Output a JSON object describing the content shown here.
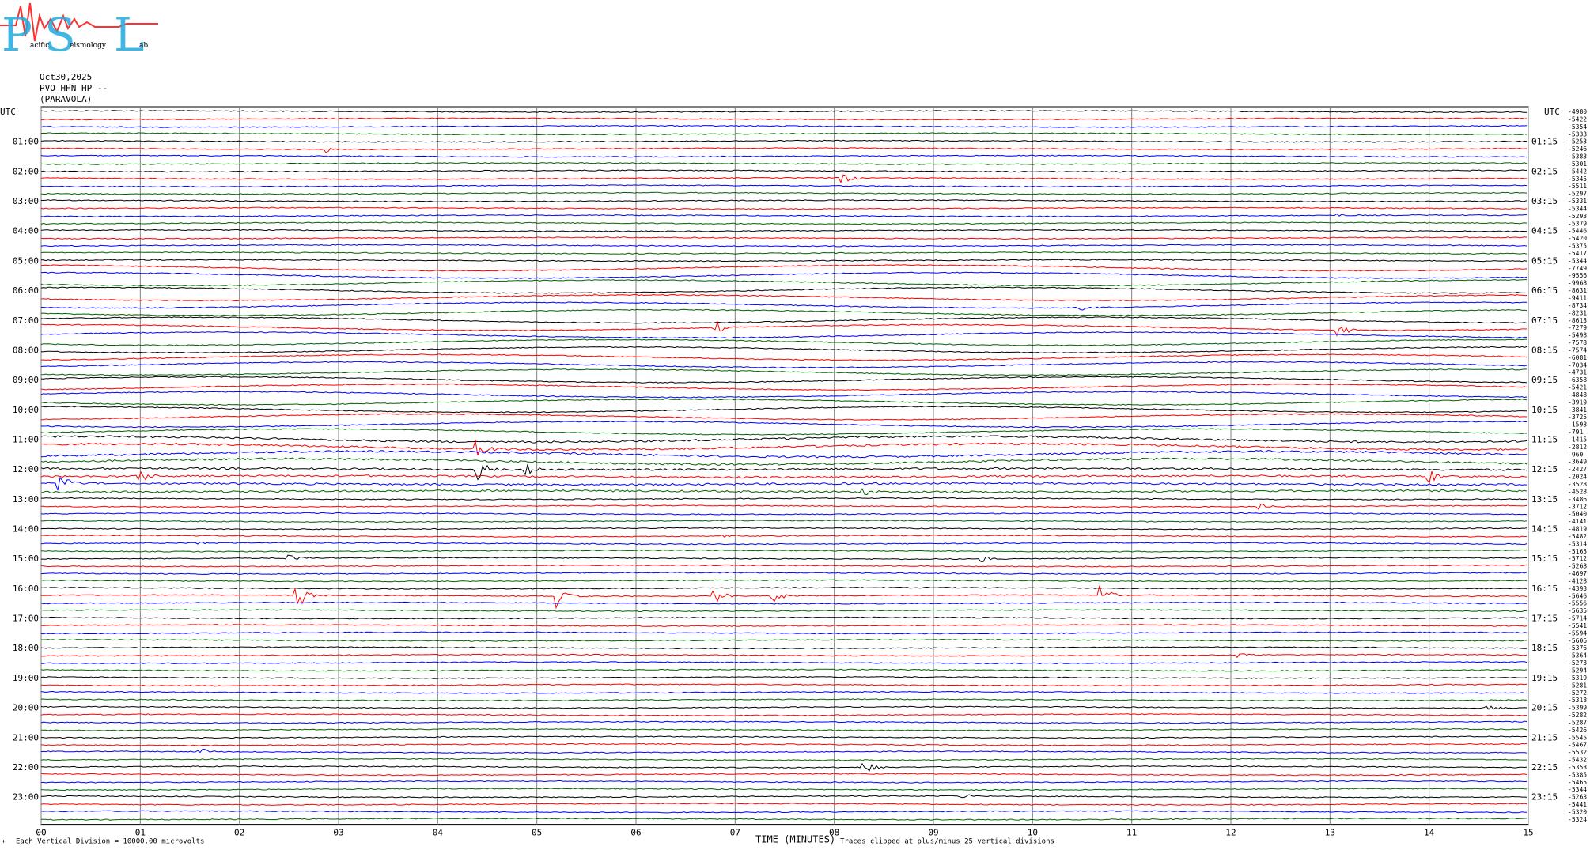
{
  "logo": {
    "letters": [
      "P",
      "S",
      "L"
    ],
    "words": [
      "acific",
      "eismology",
      "ab"
    ]
  },
  "header": {
    "date": "Oct30,2025",
    "station": "PVO HHN HP --",
    "location": "(PARAVOLA)"
  },
  "colors": {
    "trace_cycle": [
      "#000000",
      "#ff0000",
      "#0000ff",
      "#006400"
    ],
    "grid": "#808080"
  },
  "chart_data": {
    "type": "line",
    "title": "",
    "xlabel": "TIME (MINUTES)",
    "xlim": [
      0,
      15
    ],
    "x_ticks": [
      "00",
      "01",
      "02",
      "03",
      "04",
      "05",
      "06",
      "07",
      "08",
      "09",
      "10",
      "11",
      "12",
      "13",
      "14",
      "15"
    ],
    "left_axis_title": "UTC",
    "right_axis_title": "UTC",
    "left_hour_labels": [
      "01:00",
      "02:00",
      "03:00",
      "04:00",
      "05:00",
      "06:00",
      "07:00",
      "08:00",
      "09:00",
      "10:00",
      "11:00",
      "12:00",
      "13:00",
      "14:00",
      "15:00",
      "16:00",
      "17:00",
      "18:00",
      "19:00",
      "20:00",
      "21:00",
      "22:00",
      "23:00"
    ],
    "right_hour_labels": [
      "01:15",
      "02:15",
      "03:15",
      "04:15",
      "05:15",
      "06:15",
      "07:15",
      "08:15",
      "09:15",
      "10:15",
      "11:15",
      "12:15",
      "13:15",
      "14:15",
      "15:15",
      "16:15",
      "17:15",
      "18:15",
      "19:15",
      "20:15",
      "21:15",
      "22:15",
      "23:15"
    ],
    "trace_offsets": [
      "-4980",
      "-5422",
      "-5354",
      "-5333",
      "-5253",
      "-5246",
      "-5383",
      "-5301",
      "-5442",
      "-5345",
      "-5511",
      "-5297",
      "-5331",
      "-5344",
      "-5293",
      "-5379",
      "-5446",
      "-5420",
      "-5375",
      "-5417",
      "-5344",
      "-7749",
      "-9556",
      "-9968",
      "-8631",
      "-9411",
      "-8734",
      "-8231",
      "-8613",
      "-7279",
      "-5498",
      "-7578",
      "-7574",
      "-6081",
      "-7034",
      "-4731",
      "-6358",
      "-5421",
      "-4848",
      "-3919",
      "-3841",
      "-3725",
      "-1598",
      "-791",
      "-1415",
      "-2812",
      "-960",
      "-3649",
      "-2427",
      "-2024",
      "-3528",
      "-4528",
      "-3486",
      "-3712",
      "-5040",
      "-4141",
      "-4819",
      "-5482",
      "-5314",
      "-5165",
      "-5712",
      "-5268",
      "-4697",
      "-4128",
      "-4393",
      "-5646",
      "-5556",
      "-5635",
      "-5714",
      "-5541",
      "-5594",
      "-5606",
      "-5376",
      "-5364",
      "-5273",
      "-5294",
      "-5319",
      "-5281",
      "-5272",
      "-5318",
      "-5399",
      "-5282",
      "-5287",
      "-5426",
      "-5545",
      "-5467",
      "-5532",
      "-5432",
      "-5353",
      "-5385",
      "-5465",
      "-5344",
      "-5263",
      "-5441",
      "-5320",
      "-5324"
    ],
    "traces_per_hour": 4,
    "trace_minutes": 15,
    "events": [
      {
        "trace": 5,
        "minute": 2.9,
        "amp": 5
      },
      {
        "trace": 9,
        "minute": 8.1,
        "amp": 8
      },
      {
        "trace": 14,
        "minute": 13.1,
        "amp": 2
      },
      {
        "trace": 29,
        "minute": 6.8,
        "amp": 9
      },
      {
        "trace": 29,
        "minute": 13.1,
        "amp": 7
      },
      {
        "trace": 26,
        "minute": 10.5,
        "amp": 5
      },
      {
        "trace": 45,
        "minute": 4.4,
        "amp": 14
      },
      {
        "trace": 48,
        "minute": 4.4,
        "amp": 16
      },
      {
        "trace": 48,
        "minute": 4.9,
        "amp": 9
      },
      {
        "trace": 49,
        "minute": 1.0,
        "amp": 10
      },
      {
        "trace": 50,
        "minute": 0.2,
        "amp": 13
      },
      {
        "trace": 51,
        "minute": 8.3,
        "amp": 5
      },
      {
        "trace": 49,
        "minute": 14.0,
        "amp": 12
      },
      {
        "trace": 53,
        "minute": 12.3,
        "amp": 4
      },
      {
        "trace": 57,
        "minute": 6.9,
        "amp": 3
      },
      {
        "trace": 58,
        "minute": 1.6,
        "amp": 3
      },
      {
        "trace": 60,
        "minute": 2.5,
        "amp": 6
      },
      {
        "trace": 60,
        "minute": 9.5,
        "amp": 5
      },
      {
        "trace": 65,
        "minute": 2.6,
        "amp": 16
      },
      {
        "trace": 65,
        "minute": 5.2,
        "amp": 17
      },
      {
        "trace": 65,
        "minute": 10.7,
        "amp": 13
      },
      {
        "trace": 65,
        "minute": 6.8,
        "amp": 12
      },
      {
        "trace": 65,
        "minute": 7.4,
        "amp": 9
      },
      {
        "trace": 66,
        "minute": 14.5,
        "amp": 3
      },
      {
        "trace": 73,
        "minute": 12.1,
        "amp": 3
      },
      {
        "trace": 80,
        "minute": 14.6,
        "amp": 3
      },
      {
        "trace": 86,
        "minute": 1.6,
        "amp": 5
      },
      {
        "trace": 88,
        "minute": 8.3,
        "amp": 9
      },
      {
        "trace": 92,
        "minute": 9.3,
        "amp": 3
      }
    ]
  },
  "footer": {
    "left_mark": "+",
    "division_note": "Each Vertical Division = 10000.00 microvolts",
    "clip_note": "Traces clipped at plus/minus 25 vertical divisions"
  }
}
